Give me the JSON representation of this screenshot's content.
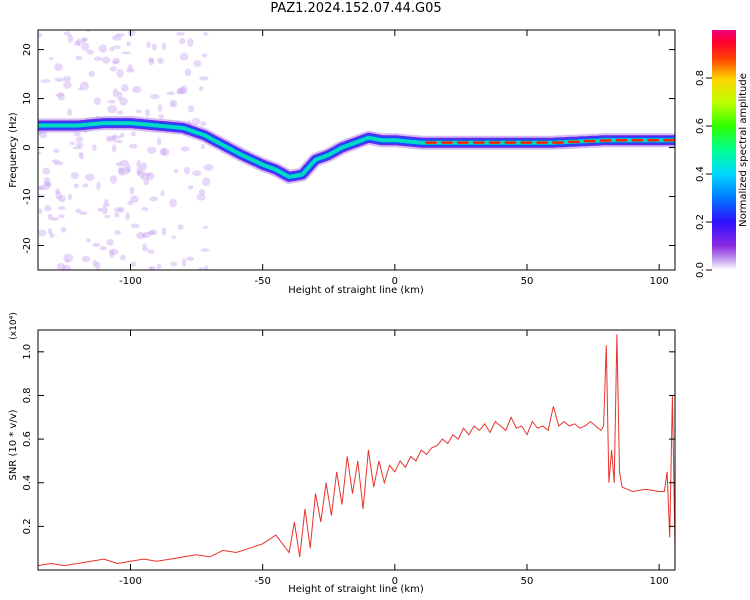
{
  "title": "PAZ1.2024.152.07.44.G05",
  "chart_data": [
    {
      "type": "heatmap",
      "xlabel": "Height of straight line (km)",
      "ylabel": "Frequency (Hz)",
      "xlim": [
        -135,
        106
      ],
      "ylim": [
        -25,
        24
      ],
      "xticks": [
        "-100",
        "-50",
        "0",
        "50",
        "100"
      ],
      "xtick_values": [
        -100,
        -50,
        0,
        50,
        100
      ],
      "yticks": [
        "-20",
        "-10",
        "0",
        "10",
        "20"
      ],
      "ytick_values": [
        -20,
        -10,
        0,
        10,
        20
      ],
      "colorbar": {
        "label": "Normalized spectral amplitude",
        "range": [
          0,
          1
        ],
        "ticks": [
          "0.0",
          "0.2",
          "0.4",
          "0.6",
          "0.8"
        ],
        "tick_values": [
          0.0,
          0.2,
          0.4,
          0.6,
          0.8
        ],
        "colormap": "rainbow (purple-blue-cyan-green-yellow-red-magenta)"
      },
      "ridge": {
        "x": [
          -135,
          -120,
          -110,
          -100,
          -90,
          -80,
          -72,
          -65,
          -58,
          -50,
          -45,
          -40,
          -35,
          -30,
          -25,
          -20,
          -15,
          -10,
          -5,
          0,
          10,
          20,
          40,
          60,
          80,
          90,
          100,
          106
        ],
        "y": [
          4.5,
          4.5,
          5,
          5,
          4.5,
          4,
          2.5,
          0.5,
          -1.5,
          -3.5,
          -4.5,
          -6,
          -5.5,
          -2.5,
          -1.5,
          0,
          1,
          2,
          1.5,
          1.5,
          1,
          1,
          1,
          1,
          1.5,
          1.5,
          1.5,
          1.5
        ]
      }
    },
    {
      "type": "line",
      "xlabel": "Height of straight line (km)",
      "ylabel": "SNR (10 * v/v)",
      "y_multiplier": "(x10⁴)",
      "xlim": [
        -135,
        106
      ],
      "ylim": [
        0,
        1.1
      ],
      "xticks": [
        "-100",
        "-50",
        "0",
        "50",
        "100"
      ],
      "xtick_values": [
        -100,
        -50,
        0,
        50,
        100
      ],
      "yticks": [
        "0.2",
        "0.4",
        "0.6",
        "0.8",
        "1.0"
      ],
      "ytick_values": [
        0.2,
        0.4,
        0.6,
        0.8,
        1.0
      ],
      "series": [
        {
          "color": "#e8332c",
          "x": [
            -135,
            -130,
            -125,
            -120,
            -115,
            -110,
            -105,
            -100,
            -95,
            -90,
            -85,
            -80,
            -75,
            -70,
            -65,
            -60,
            -55,
            -50,
            -45,
            -40,
            -38,
            -36,
            -34,
            -32,
            -30,
            -28,
            -26,
            -24,
            -22,
            -20,
            -18,
            -16,
            -14,
            -12,
            -10,
            -8,
            -6,
            -4,
            -2,
            0,
            2,
            4,
            6,
            8,
            10,
            12,
            14,
            16,
            18,
            20,
            22,
            24,
            26,
            28,
            30,
            32,
            34,
            36,
            38,
            40,
            42,
            44,
            46,
            48,
            50,
            52,
            54,
            56,
            58,
            60,
            62,
            64,
            66,
            68,
            70,
            72,
            74,
            76,
            78,
            79,
            80,
            81,
            82,
            83,
            84,
            85,
            86,
            88,
            90,
            95,
            100,
            102,
            103,
            104,
            105,
            106
          ],
          "y": [
            0.02,
            0.03,
            0.02,
            0.03,
            0.04,
            0.05,
            0.03,
            0.04,
            0.05,
            0.04,
            0.05,
            0.06,
            0.07,
            0.06,
            0.09,
            0.08,
            0.1,
            0.12,
            0.16,
            0.08,
            0.22,
            0.06,
            0.28,
            0.1,
            0.35,
            0.22,
            0.4,
            0.25,
            0.45,
            0.3,
            0.52,
            0.35,
            0.5,
            0.28,
            0.55,
            0.38,
            0.5,
            0.4,
            0.48,
            0.45,
            0.5,
            0.47,
            0.52,
            0.5,
            0.55,
            0.53,
            0.56,
            0.57,
            0.6,
            0.58,
            0.62,
            0.6,
            0.65,
            0.62,
            0.66,
            0.64,
            0.67,
            0.63,
            0.68,
            0.66,
            0.64,
            0.7,
            0.65,
            0.66,
            0.62,
            0.68,
            0.65,
            0.66,
            0.64,
            0.75,
            0.66,
            0.68,
            0.66,
            0.67,
            0.65,
            0.66,
            0.68,
            0.66,
            0.64,
            0.66,
            1.03,
            0.4,
            0.55,
            0.4,
            1.08,
            0.45,
            0.38,
            0.37,
            0.36,
            0.37,
            0.36,
            0.36,
            0.45,
            0.15,
            0.8,
            0.1
          ]
        }
      ]
    }
  ]
}
